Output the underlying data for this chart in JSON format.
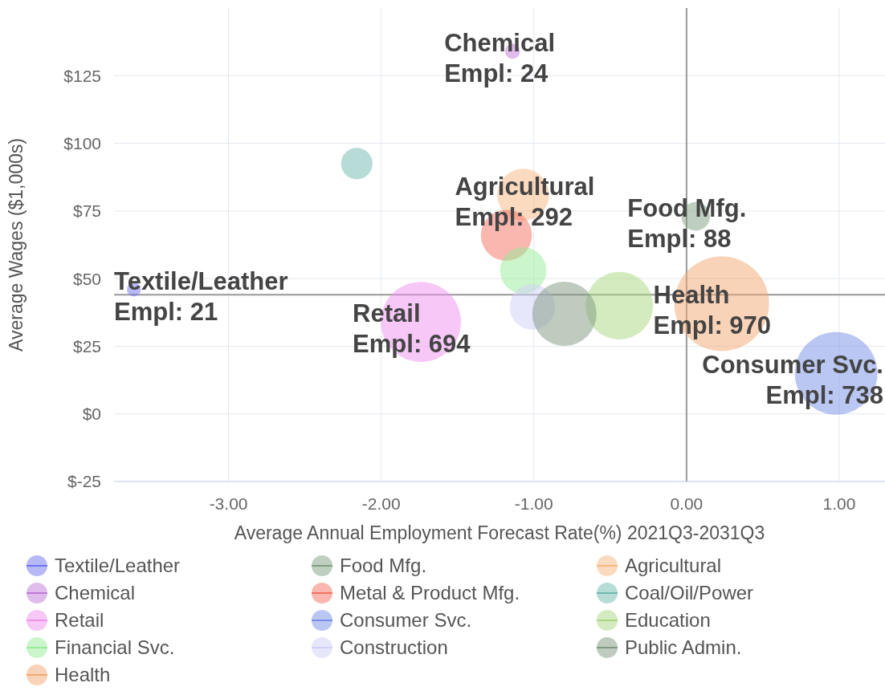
{
  "chart_data": {
    "type": "bubble",
    "xlabel": "Average Annual Employment Forecast Rate(%) 2021Q3-2031Q3",
    "ylabel": "Average Wages ($1,000s)",
    "xlim": [
      -3.75,
      1.3
    ],
    "xticks": [
      {
        "value": -3,
        "label": "-3.00"
      },
      {
        "value": -2,
        "label": "-2.00"
      },
      {
        "value": -1,
        "label": "-1.00"
      },
      {
        "value": 0,
        "label": "0.00"
      },
      {
        "value": 1,
        "label": "1.00"
      }
    ],
    "ylim": [
      -25,
      150
    ],
    "yticks": [
      {
        "value": -25,
        "label": "$-25"
      },
      {
        "value": 0,
        "label": "$0"
      },
      {
        "value": 25,
        "label": "$25"
      },
      {
        "value": 50,
        "label": "$50"
      },
      {
        "value": 75,
        "label": "$75"
      },
      {
        "value": 100,
        "label": "$100"
      },
      {
        "value": 125,
        "label": "$125"
      }
    ],
    "grid": true,
    "legend": "bottom",
    "ref_lines": [
      {
        "axis": "x",
        "value": 0,
        "color": "#999999"
      },
      {
        "axis": "y",
        "value": 44,
        "color": "#999999"
      }
    ],
    "series": [
      {
        "name": "Textile/Leather",
        "color": "#6f74f0",
        "x": [
          -3.62
        ],
        "values": [
          46
        ],
        "sizes": [
          0.022
        ]
      },
      {
        "name": "Food Mfg.",
        "color": "#7fa07f",
        "x": [
          0.06
        ],
        "values": [
          73
        ],
        "sizes": [
          0.091
        ]
      },
      {
        "name": "Agricultural",
        "color": "#f8b880",
        "x": [
          -1.07
        ],
        "values": [
          81
        ],
        "sizes": [
          0.3
        ]
      },
      {
        "name": "Chemical",
        "color": "#c07ad8",
        "x": [
          -1.14
        ],
        "values": [
          134
        ],
        "sizes": [
          0.025
        ]
      },
      {
        "name": "Metal & Product Mfg.",
        "color": "#f47060",
        "x": [
          -1.18
        ],
        "values": [
          66
        ],
        "sizes": [
          0.29
        ]
      },
      {
        "name": "Coal/Oil/Power",
        "color": "#70b8b0",
        "x": [
          -2.16
        ],
        "values": [
          92.5
        ],
        "sizes": [
          0.11
        ]
      },
      {
        "name": "Retail",
        "color": "#f090f0",
        "x": [
          -1.74
        ],
        "values": [
          34
        ],
        "sizes": [
          0.715
        ]
      },
      {
        "name": "Consumer Svc.",
        "color": "#7890e8",
        "x": [
          0.98
        ],
        "values": [
          15
        ],
        "sizes": [
          0.76
        ]
      },
      {
        "name": "Education",
        "color": "#a8d880",
        "x": [
          -0.44
        ],
        "values": [
          40
        ],
        "sizes": [
          0.51
        ]
      },
      {
        "name": "Financial Svc.",
        "color": "#98ec98",
        "x": [
          -1.07
        ],
        "values": [
          53
        ],
        "sizes": [
          0.24
        ]
      },
      {
        "name": "Construction",
        "color": "#d0d0f8",
        "x": [
          -1.01
        ],
        "values": [
          39.5
        ],
        "sizes": [
          0.23
        ]
      },
      {
        "name": "Public Admin.",
        "color": "#809880",
        "x": [
          -0.8
        ],
        "values": [
          37
        ],
        "sizes": [
          0.46
        ]
      },
      {
        "name": "Health",
        "color": "#f4a870",
        "x": [
          0.23
        ],
        "values": [
          40.7
        ],
        "sizes": [
          1
        ]
      }
    ],
    "annotations": [
      {
        "text": "Textile/Leather\nEmpl: 21",
        "x": -3.62,
        "y": 46
      },
      {
        "text": "Chemical\nEmpl: 24",
        "x": -1.14,
        "y": 134
      },
      {
        "text": "Agricultural\nEmpl: 292",
        "x": -1.07,
        "y": 81
      },
      {
        "text": "Food Mfg.\nEmpl: 88",
        "x": 0.06,
        "y": 73
      },
      {
        "text": "Retail\nEmpl: 694",
        "x": -1.74,
        "y": 34
      },
      {
        "text": "Health\nEmpl: 970",
        "x": 0.23,
        "y": 40.7
      },
      {
        "text": "Consumer Svc.\nEmpl: 738",
        "x": 0.98,
        "y": 15
      }
    ]
  }
}
